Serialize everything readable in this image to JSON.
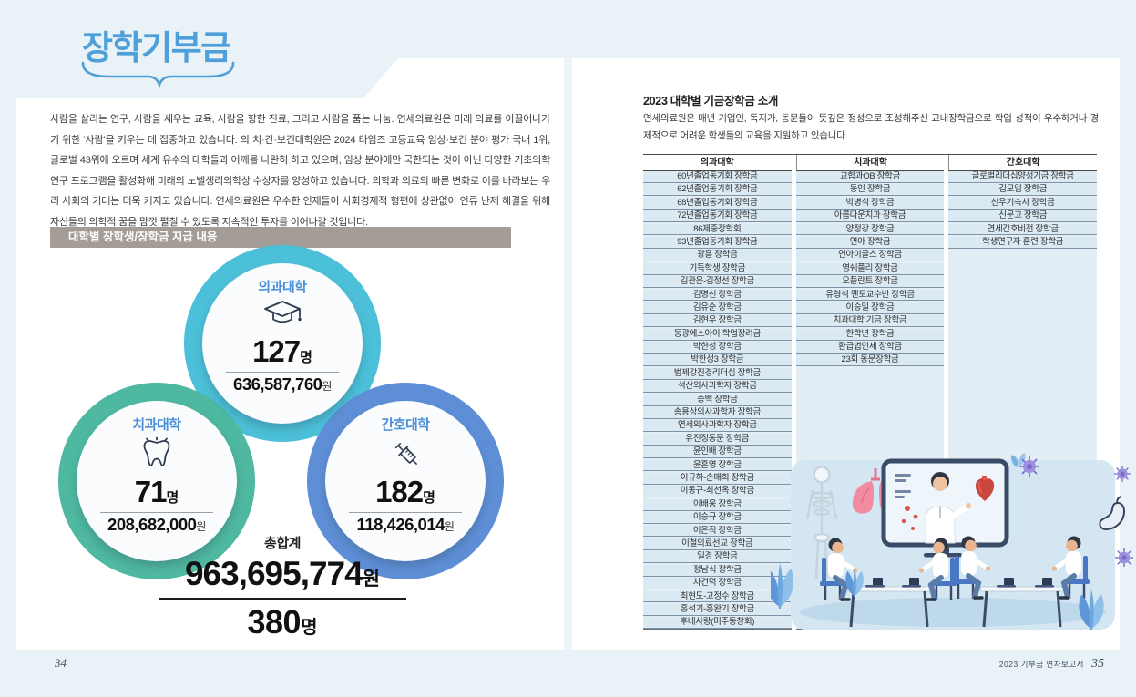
{
  "document": {
    "kind": "donation annual report spread"
  },
  "colors": {
    "frame_blue": "#e8f2f7",
    "title_blue": "#4f9fd8",
    "section_bar_gray": "#a49c96",
    "ring_teal": "#4bc0d8",
    "ring_green": "#4eb8a0",
    "ring_blue": "#5e8fd6",
    "college_name_blue": "#4a90d8",
    "table_row_blue": "#dbe9f3"
  },
  "page_left": {
    "page_number": "34",
    "title": "장학기부금",
    "intro": "사람을 살리는 연구, 사람을 세우는 교육, 사람을 향한 진료, 그리고 사람을 품는 나눔. 연세의료원은 미래 의료를 이끌어나가기 위한 ‘사람’을 키우는 데 집중하고 있습니다. 의·치·간·보건대학원은 2024 타임즈 고등교육 임상·보건 분야 평가 국내 1위, 글로벌 43위에 오르며 세계 유수의 대학들과 어깨를 나란히 하고 있으며, 임상 분야에만 국한되는 것이 아닌 다양한 기초의학 연구 프로그램을 활성화해 미래의 노벨생리의학상 수상자를 양성하고 있습니다. 의학과 의료의 빠른 변화로 이를 바라보는 우리 사회의 기대는 더욱 커지고 있습니다. 연세의료원은 우수한 인재들이 사회경제적 형편에 상관없이 인류 난제 해결을 위해 자신들의 의학적 꿈을 맘껏 펼칠 수 있도록 지속적인 투자를 이어나갈 것입니다.",
    "section_title": "대학별 장학생/장학금 지급 내용",
    "colleges": [
      {
        "name": "의과대학",
        "icon": "graduation-cap-icon",
        "count": "127",
        "count_unit": "명",
        "amount": "636,587,760",
        "amount_unit": "원",
        "ring_color": "#4bc0d8"
      },
      {
        "name": "치과대학",
        "icon": "tooth-icon",
        "count": "71",
        "count_unit": "명",
        "amount": "208,682,000",
        "amount_unit": "원",
        "ring_color": "#4eb8a0"
      },
      {
        "name": "간호대학",
        "icon": "syringe-icon",
        "count": "182",
        "count_unit": "명",
        "amount": "118,426,014",
        "amount_unit": "원",
        "ring_color": "#5e8fd6"
      }
    ],
    "total": {
      "label": "총합계",
      "amount": "963,695,774",
      "amount_unit": "원",
      "count": "380",
      "count_unit": "명"
    }
  },
  "page_right": {
    "page_number": "35",
    "footer_text": "2023 기부금 연차보고서",
    "heading": "2023 대학별 기금장학금 소개",
    "description": "연세의료원은 매년 기업인, 독지가, 동문들이 뜻깊은 정성으로 조성해주신 교내장학금으로 학업 성적이 우수하거나 경제적으로 어려운 학생들의 교육을 지원하고 있습니다.",
    "table": {
      "columns": [
        {
          "header": "의과대학",
          "rows": [
            "60년졸업동기회 장학금",
            "62년졸업동기회 장학금",
            "68년졸업동기회 장학금",
            "72년졸업동기회 장학금",
            "86제중장학회",
            "93년졸업동기회 장학금",
            "광흥 장학금",
            "기독학생 장학금",
            "김관은-김정선 장학금",
            "김명선 장학금",
            "김유순 장학금",
            "김현우 장학금",
            "동광에스아이 학업장려금",
            "박한성 장학금",
            "박한성3 장학금",
            "범제강진경리더십 장학금",
            "석산의사과학자 장학금",
            "송백 장학금",
            "송용상의사과학자 장학금",
            "연세의사과학자 장학금",
            "유진정동문 장학금",
            "윤인배 장학금",
            "윤흔영 장학금",
            "이규하-손매희 장학금",
            "이동규-최선옥 장학금",
            "이배웅 장학금",
            "이승규 장학금",
            "이은직 장학금",
            "이철의료선교 장학금",
            "일경 장학금",
            "정남식 장학금",
            "차건덕 장학금",
            "최현도-고정수 장학금",
            "홍석기-홍완기 장학금",
            "후배사랑(미주동창회)"
          ]
        },
        {
          "header": "치과대학",
          "rows": [
            "교합과OB 장학금",
            "동인 장학금",
            "박병석 장학금",
            "아름다운치과 장학금",
            "양정강 장학금",
            "연아 장학금",
            "연아이글스 장학금",
            "영쉐플리 장학금",
            "오플란트 장학금",
            "유형석 멘토교수반 장학금",
            "이승일 장학금",
            "치과대학 기금 장학금",
            "한학년 장학금",
            "환급법인세 장학금",
            "23회 동문장학금"
          ]
        },
        {
          "header": "간호대학",
          "rows": [
            "글로벌리더십양성기금 장학금",
            "김모임 장학금",
            "선우기숙사 장학금",
            "신문고 장학금",
            "연세간호비전 장학금",
            "학생연구자 훈련 장학금"
          ]
        }
      ]
    }
  }
}
